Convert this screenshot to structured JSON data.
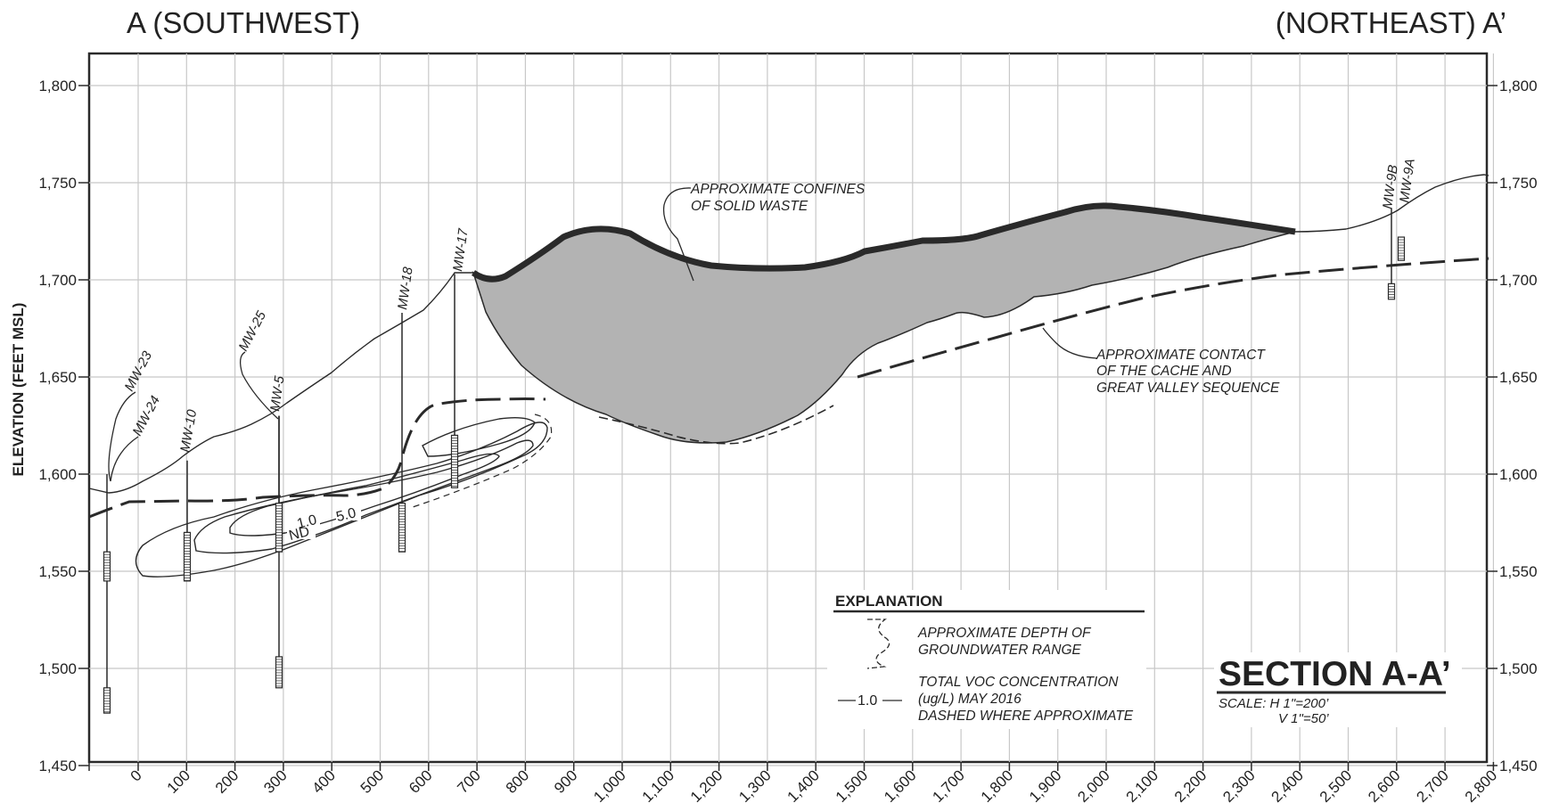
{
  "header": {
    "left": "A  (SOUTHWEST)",
    "right": "(NORTHEAST)  A’"
  },
  "axes": {
    "ylabel": "ELEVATION (FEET MSL)",
    "y_ticks": [
      "1,800",
      "1,750",
      "1,700",
      "1,650",
      "1,600",
      "1,550",
      "1,500",
      "1,450"
    ],
    "x_ticks": [
      "0",
      "100",
      "200",
      "300",
      "400",
      "500",
      "600",
      "700",
      "800",
      "900",
      "1,000",
      "1,100",
      "1,200",
      "1,300",
      "1,400",
      "1,500",
      "1,600",
      "1,700",
      "1,800",
      "1,900",
      "2,000",
      "2,100",
      "2,200",
      "2,300",
      "2,400",
      "2,500",
      "2,600",
      "2,700",
      "2,800"
    ],
    "ylim": [
      1450,
      1800
    ],
    "xlim": [
      -100,
      2800
    ]
  },
  "wells": [
    {
      "label": "MW-23",
      "x": -50
    },
    {
      "label": "MW-24",
      "x": -50
    },
    {
      "label": "MW-10",
      "x": 100
    },
    {
      "label": "MW-25",
      "x": 290
    },
    {
      "label": "MW-5",
      "x": 290
    },
    {
      "label": "MW-18",
      "x": 545
    },
    {
      "label": "MW-17",
      "x": 660
    },
    {
      "label": "MW-9B",
      "x": 2600
    },
    {
      "label": "MW-9A",
      "x": 2615
    }
  ],
  "annotations": {
    "solid_waste": [
      "APPROXIMATE CONFINES",
      "OF SOLID WASTE"
    ],
    "contact": [
      "APPROXIMATE CONTACT",
      "OF THE CACHE AND",
      "GREAT VALLEY SEQUENCE"
    ]
  },
  "contours": {
    "ND": "ND",
    "c1": "1.0",
    "c5": "5.0"
  },
  "explanation": {
    "title": "EXPLANATION",
    "gw": [
      "APPROXIMATE DEPTH OF",
      "GROUNDWATER RANGE"
    ],
    "voc_symbol": "1.0",
    "voc": [
      "TOTAL VOC CONCENTRATION",
      "(ug/L) MAY 2016",
      "DASHED WHERE APPROXIMATE"
    ]
  },
  "title_block": {
    "title": "SECTION A-A’",
    "scale_h": "SCALE:  H  1\"=200’",
    "scale_v": "V  1\"=50’"
  },
  "colors": {
    "waste_fill": "#b3b3b3",
    "line": "#2a2a2a",
    "grid": "#c8c8c8"
  }
}
